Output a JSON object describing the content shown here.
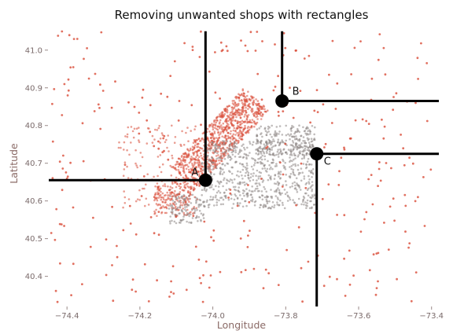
{
  "chart_data": {
    "type": "scatter",
    "title": "Removing unwanted shops with rectangles",
    "xlabel": "Longitude",
    "ylabel": "Latitude",
    "xlim": [
      -74.45,
      -73.38
    ],
    "ylim": [
      40.32,
      41.06
    ],
    "x_ticks": [
      -74.4,
      -74.2,
      -74.0,
      -73.8,
      -73.6,
      -73.4
    ],
    "x_tick_labels": [
      "−74.4",
      "−74.2",
      "−74.0",
      "−73.8",
      "−73.6",
      "−73.4"
    ],
    "y_ticks": [
      40.4,
      40.5,
      40.6,
      40.7,
      40.8,
      40.9,
      41.0
    ],
    "y_tick_labels": [
      "40.4",
      "40.5",
      "40.6",
      "40.7",
      "40.8",
      "40.9",
      "41.0"
    ],
    "grid": false,
    "colors": {
      "kept": "#d94c38",
      "removed": "#8c8583",
      "lines": "#000000"
    },
    "clusters": [
      {
        "group": "kept",
        "lon": [
          -74.08,
          -73.88
        ],
        "lat": [
          40.66,
          40.87
        ],
        "count": 900,
        "shape": "manhattan-bronx"
      },
      {
        "group": "kept",
        "lon": [
          -74.16,
          -74.05
        ],
        "lat": [
          40.56,
          40.65
        ],
        "count": 180,
        "shape": "box"
      },
      {
        "group": "kept",
        "lon": [
          -74.26,
          -74.04
        ],
        "lat": [
          40.58,
          40.8
        ],
        "count": 140,
        "shape": "box"
      },
      {
        "group": "removed",
        "lon": [
          -74.03,
          -73.72
        ],
        "lat": [
          40.58,
          40.76
        ],
        "count": 700,
        "shape": "box"
      },
      {
        "group": "removed",
        "lon": [
          -73.88,
          -73.72
        ],
        "lat": [
          40.72,
          40.8
        ],
        "count": 220,
        "shape": "box"
      },
      {
        "group": "removed",
        "lon": [
          -74.12,
          -74.02
        ],
        "lat": [
          40.54,
          40.62
        ],
        "count": 120,
        "shape": "box"
      },
      {
        "group": "kept",
        "lon": [
          -74.45,
          -73.4
        ],
        "lat": [
          40.33,
          41.05
        ],
        "count": 320,
        "shape": "scatter"
      }
    ],
    "points": [
      {
        "label": "A",
        "lon": -74.02,
        "lat": 40.655
      },
      {
        "label": "B",
        "lon": -73.81,
        "lat": 40.865
      },
      {
        "label": "C",
        "lon": -73.715,
        "lat": 40.725
      }
    ],
    "lines": [
      {
        "from": [
          -74.45,
          40.655
        ],
        "to": [
          -74.02,
          40.655
        ]
      },
      {
        "from": [
          -74.02,
          40.655
        ],
        "to": [
          -74.02,
          41.05
        ]
      },
      {
        "from": [
          -73.81,
          40.865
        ],
        "to": [
          -73.81,
          41.05
        ]
      },
      {
        "from": [
          -73.81,
          40.865
        ],
        "to": [
          -73.38,
          40.865
        ]
      },
      {
        "from": [
          -73.715,
          40.725
        ],
        "to": [
          -73.38,
          40.725
        ]
      },
      {
        "from": [
          -73.715,
          40.725
        ],
        "to": [
          -73.715,
          40.32
        ]
      }
    ]
  }
}
